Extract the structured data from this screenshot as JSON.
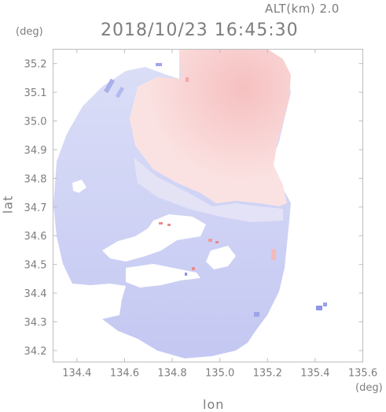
{
  "header": {
    "altitude": "ALT(km) 2.0",
    "timestamp": "2018/10/23 16:45:30"
  },
  "axes": {
    "y_unit": "(deg)",
    "x_unit": "(deg)",
    "x_label": "lon",
    "y_label": "lat",
    "x_range": [
      134.3,
      135.6
    ],
    "y_range": [
      34.16,
      35.25
    ],
    "x_ticks": [
      "134.4",
      "134.6",
      "134.8",
      "135.0",
      "135.2",
      "135.4",
      "135.6"
    ],
    "y_ticks": [
      "34.2",
      "34.3",
      "34.4",
      "34.5",
      "34.6",
      "34.7",
      "34.8",
      "34.9",
      "35.0",
      "35.1",
      "35.2"
    ]
  },
  "colors": {
    "approaching": "#c7cbf5",
    "receding": "#f7c9c9",
    "axis": "#bdbdbd",
    "text": "#7d7d7d"
  }
}
